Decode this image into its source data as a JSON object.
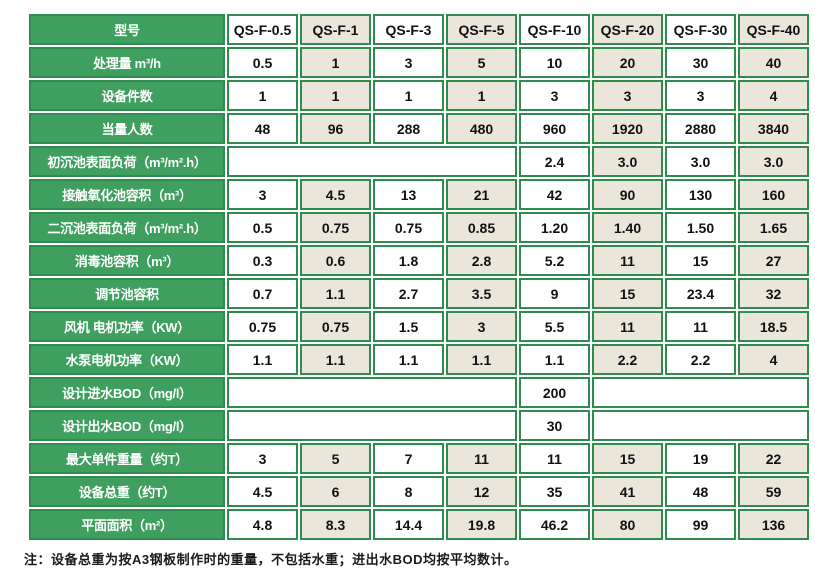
{
  "chart_data": {
    "type": "table",
    "header": {
      "label": "型号",
      "models": [
        "QS-F-0.5",
        "QS-F-1",
        "QS-F-3",
        "QS-F-5",
        "QS-F-10",
        "QS-F-20",
        "QS-F-30",
        "QS-F-40"
      ]
    },
    "rows": [
      {
        "label": "处理量 m³/h",
        "values": [
          "0.5",
          "1",
          "3",
          "5",
          "10",
          "20",
          "30",
          "40"
        ]
      },
      {
        "label": "设备件数",
        "values": [
          "1",
          "1",
          "1",
          "1",
          "3",
          "3",
          "3",
          "4"
        ]
      },
      {
        "label": "当量人数",
        "values": [
          "48",
          "96",
          "288",
          "480",
          "960",
          "1920",
          "2880",
          "3840"
        ]
      },
      {
        "label": "初沉池表面负荷（m³/m².h）",
        "values": [
          {
            "text": "",
            "span": 4
          },
          "2.4",
          "3.0",
          "3.0",
          "3.0"
        ]
      },
      {
        "label": "接触氧化池容积（m³）",
        "values": [
          "3",
          "4.5",
          "13",
          "21",
          "42",
          "90",
          "130",
          "160"
        ]
      },
      {
        "label": "二沉池表面负荷（m³/m².h）",
        "values": [
          "0.5",
          "0.75",
          "0.75",
          "0.85",
          "1.20",
          "1.40",
          "1.50",
          "1.65"
        ]
      },
      {
        "label": "消毒池容积（m³）",
        "values": [
          "0.3",
          "0.6",
          "1.8",
          "2.8",
          "5.2",
          "11",
          "15",
          "27"
        ]
      },
      {
        "label": "调节池容积",
        "values": [
          "0.7",
          "1.1",
          "2.7",
          "3.5",
          "9",
          "15",
          "23.4",
          "32"
        ]
      },
      {
        "label": "风机 电机功率（KW）",
        "values": [
          "0.75",
          "0.75",
          "1.5",
          "3",
          "5.5",
          "11",
          "11",
          "18.5"
        ]
      },
      {
        "label": "水泵电机功率（KW）",
        "values": [
          "1.1",
          "1.1",
          "1.1",
          "1.1",
          "1.1",
          "2.2",
          "2.2",
          "4"
        ]
      },
      {
        "label": "设计进水BOD（mg/l）",
        "values": [
          {
            "text": "",
            "span": 4
          },
          "200",
          {
            "text": "",
            "span": 3
          }
        ]
      },
      {
        "label": "设计出水BOD（mg/l）",
        "values": [
          {
            "text": "",
            "span": 4
          },
          "30",
          {
            "text": "",
            "span": 3
          }
        ]
      },
      {
        "label": "最大单件重量（约T）",
        "values": [
          "3",
          "5",
          "7",
          "11",
          "11",
          "15",
          "19",
          "22"
        ]
      },
      {
        "label": "设备总重（约T）",
        "values": [
          "4.5",
          "6",
          "8",
          "12",
          "35",
          "41",
          "48",
          "59"
        ]
      },
      {
        "label": "平面面积（m²）",
        "values": [
          "4.8",
          "8.3",
          "14.4",
          "19.8",
          "46.2",
          "80",
          "99",
          "136"
        ]
      }
    ]
  },
  "note": "注：设备总重为按A3钢板制作时的重量，不包括水重；进出水BOD均按平均数计。",
  "colors": {
    "green": "#3E9F5E",
    "green_border": "#2E8C4F",
    "beige": "#EAE6DA",
    "text": "#111111"
  }
}
